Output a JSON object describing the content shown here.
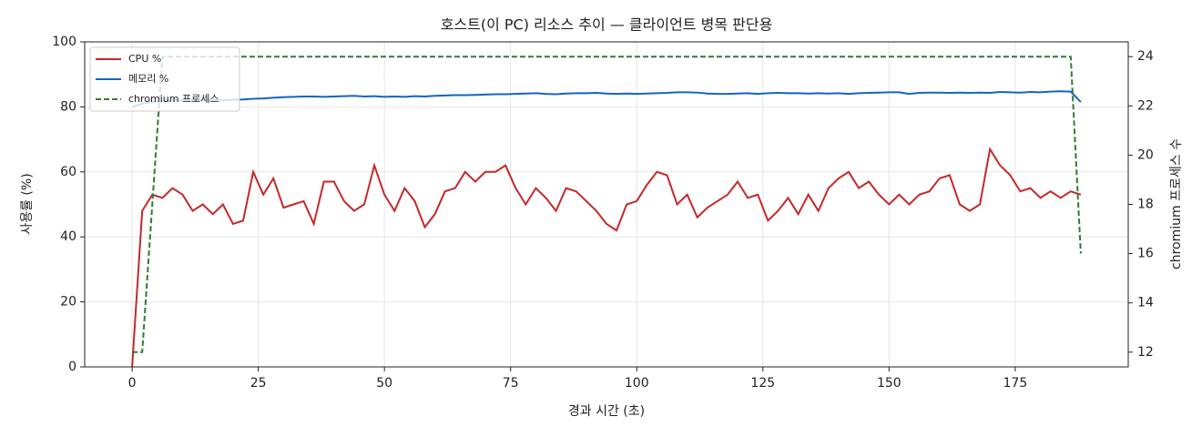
{
  "chart_data": {
    "type": "line",
    "title": "호스트(이 PC) 리소스 추이 — 클라이언트 병목 판단용",
    "x_label": "경과 시간 (초)",
    "y_label": "사용률 (%)",
    "y2_label": "chromium 프로세스 수",
    "x": [
      0,
      2,
      4,
      6,
      8,
      10,
      12,
      14,
      16,
      18,
      20,
      22,
      24,
      26,
      28,
      30,
      32,
      34,
      36,
      38,
      40,
      42,
      44,
      46,
      48,
      50,
      52,
      54,
      56,
      58,
      60,
      62,
      64,
      66,
      68,
      70,
      72,
      74,
      76,
      78,
      80,
      82,
      84,
      86,
      88,
      90,
      92,
      94,
      96,
      98,
      100,
      102,
      104,
      106,
      108,
      110,
      112,
      114,
      116,
      118,
      120,
      122,
      124,
      126,
      128,
      130,
      132,
      134,
      136,
      138,
      140,
      142,
      144,
      146,
      148,
      150,
      152,
      154,
      156,
      158,
      160,
      162,
      164,
      166,
      168,
      170,
      172,
      174,
      176,
      178,
      180,
      182,
      184,
      186,
      188
    ],
    "series": [
      {
        "name": "CPU %",
        "color": "#c62828",
        "line_style": "solid",
        "axis": "y",
        "values": [
          0,
          48,
          53,
          52,
          55,
          53,
          48,
          50,
          47,
          50,
          44,
          45,
          60,
          53,
          58,
          49,
          50,
          51,
          44,
          57,
          57,
          51,
          48,
          50,
          62,
          53,
          48,
          55,
          51,
          43,
          47,
          54,
          55,
          60,
          57,
          60,
          60,
          62,
          55,
          50,
          55,
          52,
          48,
          55,
          54,
          51,
          48,
          44,
          42,
          50,
          51,
          56,
          60,
          59,
          50,
          53,
          46,
          49,
          51,
          53,
          57,
          52,
          53,
          45,
          48,
          52,
          47,
          53,
          48,
          55,
          58,
          60,
          55,
          57,
          53,
          50,
          53,
          50,
          53,
          54,
          58,
          59,
          50,
          48,
          50,
          67,
          62,
          59,
          54,
          55,
          52,
          54,
          52,
          54,
          53
        ]
      },
      {
        "name": "메모리 %",
        "color": "#1565c0",
        "line_style": "solid",
        "axis": "y",
        "values": [
          80,
          81,
          81.5,
          81.8,
          82,
          82,
          82,
          82,
          82,
          82,
          82.2,
          82.3,
          82.5,
          82.6,
          82.8,
          83,
          83.1,
          83.2,
          83.2,
          83.1,
          83.2,
          83.3,
          83.4,
          83.2,
          83.3,
          83.1,
          83.2,
          83.1,
          83.3,
          83.2,
          83.4,
          83.5,
          83.6,
          83.6,
          83.7,
          83.8,
          83.9,
          83.9,
          84,
          84.1,
          84.2,
          84,
          83.9,
          84.1,
          84.2,
          84.2,
          84.3,
          84.1,
          84,
          84.1,
          84,
          84.1,
          84.2,
          84.3,
          84.5,
          84.5,
          84.4,
          84.1,
          84,
          84,
          84.1,
          84.2,
          84,
          84.2,
          84.3,
          84.2,
          84.2,
          84.1,
          84.2,
          84.1,
          84.2,
          84,
          84.2,
          84.3,
          84.4,
          84.5,
          84.5,
          84,
          84.3,
          84.4,
          84.4,
          84.3,
          84.4,
          84.3,
          84.4,
          84.3,
          84.6,
          84.5,
          84.4,
          84.6,
          84.5,
          84.7,
          84.8,
          84.7,
          81.5
        ]
      },
      {
        "name": "chromium 프로세스",
        "color": "#2e7d32",
        "line_style": "dashed",
        "axis": "y2",
        "values": [
          12,
          12,
          18,
          24,
          24,
          24,
          24,
          24,
          24,
          24,
          24,
          24,
          24,
          24,
          24,
          24,
          24,
          24,
          24,
          24,
          24,
          24,
          24,
          24,
          24,
          24,
          24,
          24,
          24,
          24,
          24,
          24,
          24,
          24,
          24,
          24,
          24,
          24,
          24,
          24,
          24,
          24,
          24,
          24,
          24,
          24,
          24,
          24,
          24,
          24,
          24,
          24,
          24,
          24,
          24,
          24,
          24,
          24,
          24,
          24,
          24,
          24,
          24,
          24,
          24,
          24,
          24,
          24,
          24,
          24,
          24,
          24,
          24,
          24,
          24,
          24,
          24,
          24,
          24,
          24,
          24,
          24,
          24,
          24,
          24,
          24,
          24,
          24,
          24,
          24,
          24,
          24,
          24,
          24,
          16
        ]
      }
    ],
    "xlim": [
      -9.4,
      197.4
    ],
    "xticks": [
      0,
      25,
      50,
      75,
      100,
      125,
      150,
      175
    ],
    "ylim": [
      0,
      100
    ],
    "yticks": [
      0,
      20,
      40,
      60,
      80,
      100
    ],
    "y2lim": [
      11.4,
      24.6
    ],
    "y2ticks": [
      12,
      14,
      16,
      18,
      20,
      22,
      24
    ],
    "grid": true,
    "legend": "upper-left"
  }
}
